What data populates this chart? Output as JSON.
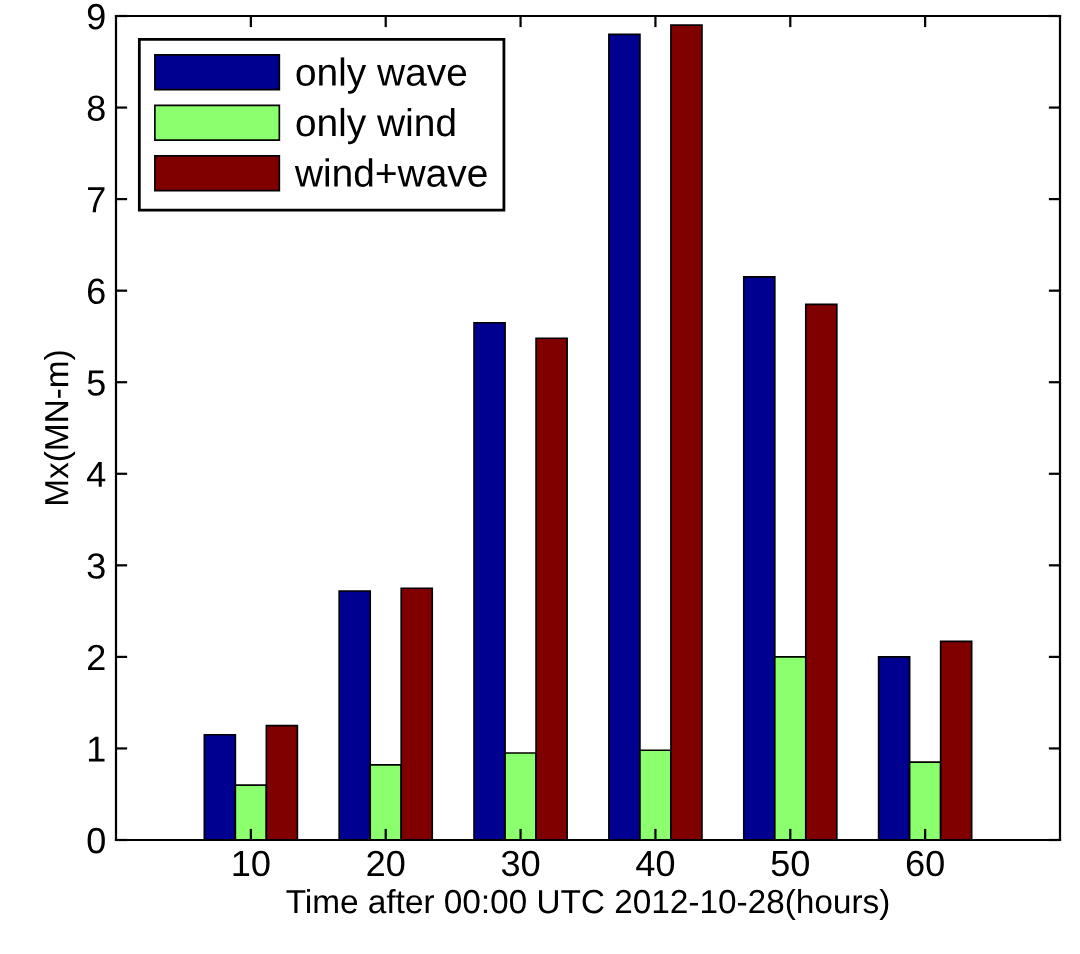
{
  "chart_data": {
    "type": "bar",
    "xlabel": "Time after 00:00 UTC 2012-10-28(hours)",
    "ylabel": "Mx(MN-m)",
    "x": [
      10,
      20,
      30,
      40,
      50,
      60
    ],
    "series": [
      {
        "name": "only wave",
        "color": "#000090",
        "values": [
          1.15,
          2.72,
          5.65,
          8.8,
          6.15,
          2.0
        ]
      },
      {
        "name": "only wind",
        "color": "#8cff6e",
        "values": [
          0.6,
          0.82,
          0.95,
          0.98,
          2.0,
          0.85
        ]
      },
      {
        "name": "wind+wave",
        "color": "#800000",
        "values": [
          1.25,
          2.75,
          5.48,
          8.9,
          5.85,
          2.17
        ]
      }
    ],
    "xlim": [
      0,
      70
    ],
    "xticks": [
      10,
      20,
      30,
      40,
      50,
      60
    ],
    "ylim": [
      0,
      9
    ],
    "yticks": [
      0,
      1,
      2,
      3,
      4,
      5,
      6,
      7,
      8,
      9
    ],
    "grid": false,
    "legend": "top left"
  }
}
